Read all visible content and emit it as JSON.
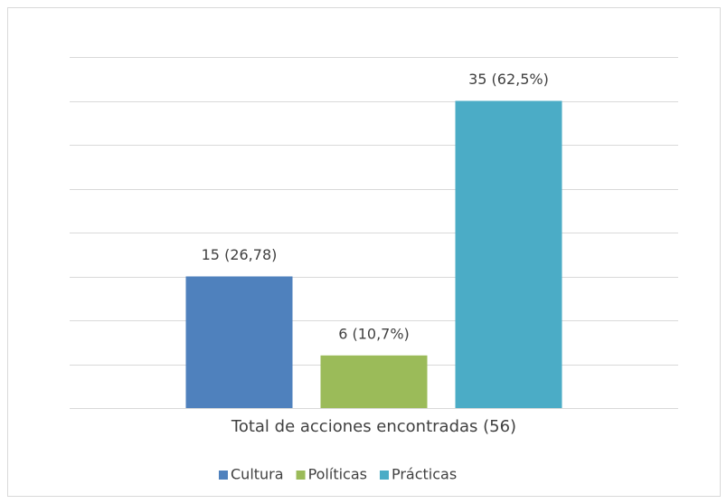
{
  "chart_data": {
    "type": "bar",
    "categories": [
      "Total de acciones encontradas (56)"
    ],
    "series": [
      {
        "name": "Cultura",
        "color": "#4f81bd",
        "values": [
          15
        ],
        "value_labels": [
          "15 (26,78)"
        ]
      },
      {
        "name": "Políticas",
        "color": "#9bbb59",
        "values": [
          6
        ],
        "value_labels": [
          "6 (10,7%)"
        ]
      },
      {
        "name": "Prácticas",
        "color": "#4bacc6",
        "values": [
          35
        ],
        "value_labels": [
          "35 (62,5%)"
        ]
      }
    ],
    "ylim": [
      0,
      40
    ],
    "yticks": [
      0,
      5,
      10,
      15,
      20,
      25,
      30,
      35,
      40
    ],
    "grid": true,
    "legend": "bottom"
  }
}
